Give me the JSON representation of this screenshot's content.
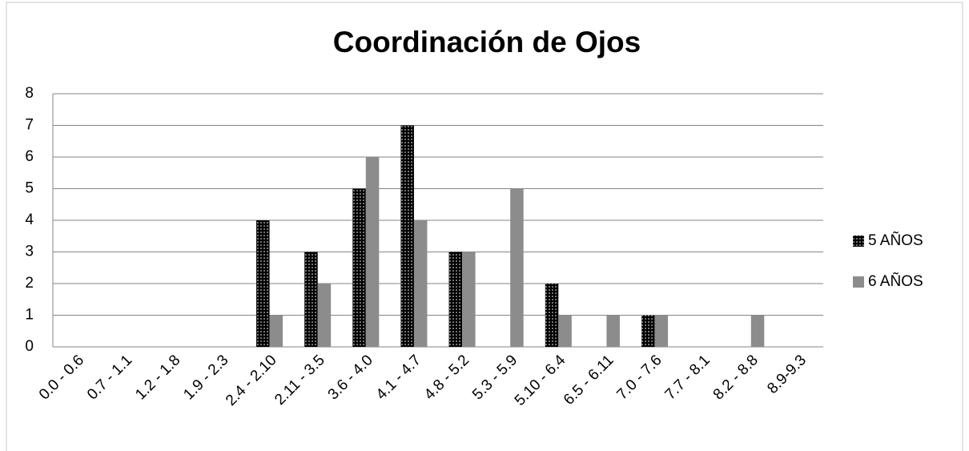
{
  "chart_data": {
    "type": "bar",
    "title": "Coordinación de Ojos",
    "categories": [
      "0.0 - 0.6",
      "0.7 - 1.1",
      "1.2 - 1.8",
      "1.9 - 2.3",
      "2.4 - 2.10",
      "2.11 - 3.5",
      "3.6 - 4.0",
      "4.1 - 4.7",
      "4.8 - 5.2",
      "5.3 - 5.9",
      "5.10 - 6.4",
      "6.5 - 6.11",
      "7.0 - 7.6",
      "7.7 - 8.1",
      "8.2 - 8.8",
      "8.9-9.3"
    ],
    "series": [
      {
        "name": "5 AÑOS",
        "color": "#000000",
        "pattern": "dotted",
        "values": [
          0,
          0,
          0,
          0,
          4,
          3,
          5,
          7,
          3,
          0,
          2,
          0,
          1,
          0,
          0,
          0
        ]
      },
      {
        "name": "6 AÑOS",
        "color": "#8c8c8c",
        "values": [
          0,
          0,
          0,
          0,
          1,
          2,
          6,
          4,
          3,
          5,
          1,
          1,
          1,
          0,
          1,
          0
        ]
      }
    ],
    "ylim": [
      0,
      8
    ],
    "yticks": [
      0,
      1,
      2,
      3,
      4,
      5,
      6,
      7,
      8
    ],
    "grid": true,
    "legend": "right"
  }
}
